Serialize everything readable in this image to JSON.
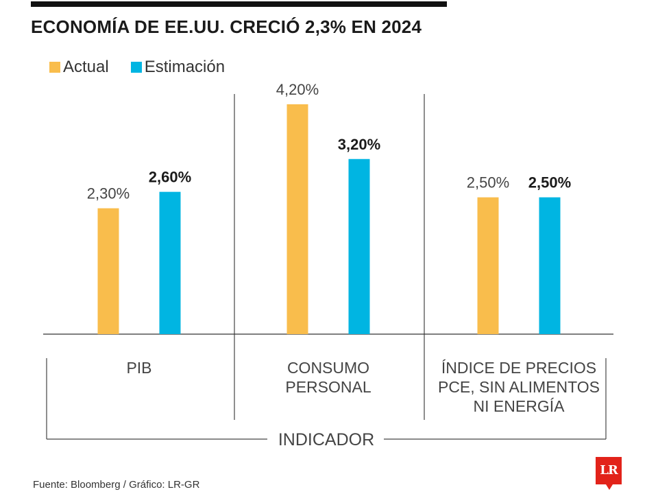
{
  "title": "ECONOMÍA DE EE.UU. CRECIÓ 2,3% EN 2024",
  "legend": [
    {
      "label": "Actual",
      "color": "#f9bd4c"
    },
    {
      "label": "Estimación",
      "color": "#00b5e2"
    }
  ],
  "chart_data": {
    "type": "bar",
    "title": "ECONOMÍA DE EE.UU. CRECIÓ 2,3% EN 2024",
    "xlabel": "INDICADOR",
    "ylabel": "",
    "ylim": [
      0,
      4.2
    ],
    "grid": false,
    "legend_position": "top-left",
    "categories": [
      [
        "PIB"
      ],
      [
        "CONSUMO",
        "PERSONAL"
      ],
      [
        "ÍNDICE DE PRECIOS",
        "PCE, SIN ALIMENTOS",
        "NI ENERGÍA"
      ]
    ],
    "series": [
      {
        "name": "Actual",
        "color": "#f9bd4c",
        "values": [
          2.3,
          4.2,
          2.5
        ],
        "labels": [
          "2,30%",
          "4,20%",
          "2,50%"
        ]
      },
      {
        "name": "Estimación",
        "color": "#00b5e2",
        "values": [
          2.6,
          3.2,
          2.5
        ],
        "labels": [
          "2,60%",
          "3,20%",
          "2,50%"
        ]
      }
    ]
  },
  "source": "Fuente: Bloomberg / Gráfico: LR-GR",
  "logo_text": "LR"
}
